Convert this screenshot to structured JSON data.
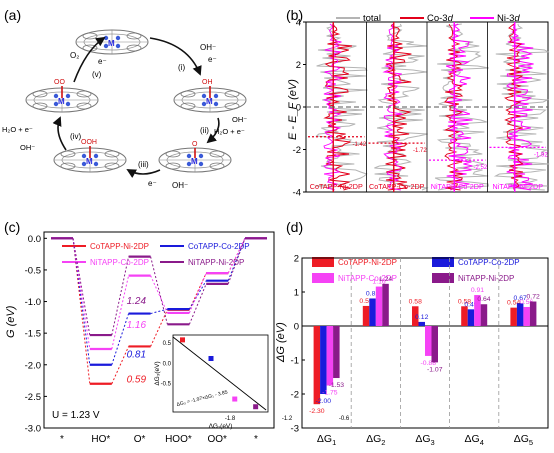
{
  "panels": {
    "a": {
      "label": "(a)",
      "steps": [
        "(i)",
        "(ii)",
        "(iii)",
        "(iv)",
        "(v)"
      ],
      "atoms": {
        "metal": "M",
        "o": "O",
        "oh": "OH",
        "ooh": "OOH",
        "oo": "OO"
      },
      "reagents": {
        "oh_minus": "OH⁻",
        "e_minus": "e⁻",
        "o2": "O₂",
        "h2o_e": "H₂O + e⁻",
        "h2o_e_left": "H₂O + e⁻",
        "oh_left": "OH⁻"
      }
    },
    "b": {
      "label": "(b)"
    },
    "c": {
      "label": "(c)"
    },
    "d": {
      "label": "(d)"
    }
  },
  "colors": {
    "CoTAPP-Ni-2DP": "#ee1c25",
    "CoTAPP-Co-2DP": "#1a1adb",
    "NiTAPP-Co-2DP": "#f542f5",
    "NiTAPP-Ni-2DP": "#8a1a8a",
    "total": "#b4b4b4",
    "Co-3d": "#e3001b",
    "Ni-3d": "#ff00ff"
  },
  "chart_data": [
    {
      "panel": "b",
      "type": "line",
      "ylabel": "E - E_F (eV)",
      "ylim": [
        -4,
        4
      ],
      "yticks": [
        4,
        2,
        0,
        -2,
        -4
      ],
      "legend": [
        "total",
        "Co-3d",
        "Ni-3d"
      ],
      "legend_placement": "top",
      "legend_text": {
        "total": "total",
        "co": "Co-3",
        "ni": "Ni-3",
        "d": "d"
      },
      "columns": [
        "CoTAPP-Ni-2DP",
        "CoTAPP-Co-2DP",
        "NiTAPP-Co-2DP",
        "NiTAPP-Ni-2DP"
      ],
      "band_centers": [
        -1.4,
        -1.7,
        -2.5,
        -1.9
      ],
      "band_center_labels": [
        "-1.42",
        "-1.72",
        "-2.52",
        "-1.92"
      ]
    },
    {
      "panel": "c",
      "type": "line",
      "title": "",
      "ylabel": "G (eV)",
      "ylim": [
        -3.0,
        0.1
      ],
      "yticks": [
        0.0,
        -0.5,
        -1.0,
        -1.5,
        -2.0,
        -2.5,
        -3.0
      ],
      "categories": [
        "*",
        "HO*",
        "O*",
        "HOO*",
        "OO*",
        "*"
      ],
      "series": [
        {
          "name": "CoTAPP-Ni-2DP",
          "values": [
            0,
            -2.3,
            -1.71,
            -1.13,
            -0.55,
            0
          ]
        },
        {
          "name": "CoTAPP-Co-2DP",
          "values": [
            0,
            -2.0,
            -1.19,
            -1.12,
            -0.67,
            0
          ]
        },
        {
          "name": "NiTAPP-Co-2DP",
          "values": [
            0,
            -1.75,
            -0.59,
            -1.18,
            -0.55,
            0
          ]
        },
        {
          "name": "NiTAPP-Ni-2DP",
          "values": [
            0,
            -1.53,
            -0.29,
            -1.36,
            -0.72,
            0
          ]
        }
      ],
      "overpotentials": [
        {
          "series": "NiTAPP-Ni-2DP",
          "value": "1.24"
        },
        {
          "series": "NiTAPP-Co-2DP",
          "value": "1.16"
        },
        {
          "series": "CoTAPP-Co-2DP",
          "value": "0.81"
        },
        {
          "series": "CoTAPP-Ni-2DP",
          "value": "0.59"
        }
      ],
      "annotation": "U = 1.23 V",
      "inset": {
        "xlabel": "ΔG₁(eV)",
        "ylabel": "ΔG₃(eV)",
        "xlim": [
          -2.4,
          -1.4
        ],
        "ylim": [
          -1.2,
          0.7
        ],
        "xticks": [
          -1.8,
          -1.2,
          -0.6
        ],
        "xtick_labels": [
          "-1.8",
          "-1.2",
          "-0.6"
        ],
        "yticks": [
          0.5,
          0.0,
          -0.5
        ],
        "ytick_labels": [
          "0.5",
          "0.0",
          "-0.5"
        ],
        "points": [
          [
            -2.3,
            0.58
          ],
          [
            -2.0,
            0.12
          ],
          [
            -1.75,
            -0.88
          ],
          [
            -1.53,
            -1.07
          ]
        ],
        "fit_label": "ΔG₃ = -1.97×ΔG₁ - 3.85"
      }
    },
    {
      "panel": "d",
      "type": "bar",
      "ylabel": "ΔG (eV)",
      "ylim": [
        -3,
        2
      ],
      "yticks": [
        2,
        1,
        0,
        -1,
        -2,
        -3
      ],
      "categories": [
        "ΔG1",
        "ΔG2",
        "ΔG3",
        "ΔG4",
        "ΔG5"
      ],
      "category_parts": [
        {
          "base": "ΔG",
          "sub": "1"
        },
        {
          "base": "ΔG",
          "sub": "2"
        },
        {
          "base": "ΔG",
          "sub": "3"
        },
        {
          "base": "ΔG",
          "sub": "4"
        },
        {
          "base": "ΔG",
          "sub": "5"
        }
      ],
      "series": [
        {
          "name": "CoTAPP-Ni-2DP",
          "values": [
            -2.3,
            0.59,
            0.58,
            0.58,
            0.54
          ]
        },
        {
          "name": "CoTAPP-Co-2DP",
          "values": [
            -2.0,
            0.81,
            0.12,
            0.49,
            0.67
          ]
        },
        {
          "name": "NiTAPP-Co-2DP",
          "values": [
            -1.75,
            1.16,
            -0.88,
            0.91,
            0.56
          ]
        },
        {
          "name": "NiTAPP-Ni-2DP",
          "values": [
            -1.53,
            1.24,
            -1.07,
            0.64,
            0.72
          ]
        }
      ],
      "labels": [
        [
          "-2.30",
          "0.59",
          "0.58",
          "0.58",
          "0.54"
        ],
        [
          "-2.00",
          "0.81",
          "0.12",
          "0.49",
          "0.67"
        ],
        [
          "-1.75",
          "1.16",
          "-0.88",
          "0.91",
          "0.56"
        ],
        [
          "-1.53",
          "1.24",
          "-1.07",
          "0.64",
          "0.72"
        ]
      ],
      "legend_placement": "top"
    }
  ]
}
